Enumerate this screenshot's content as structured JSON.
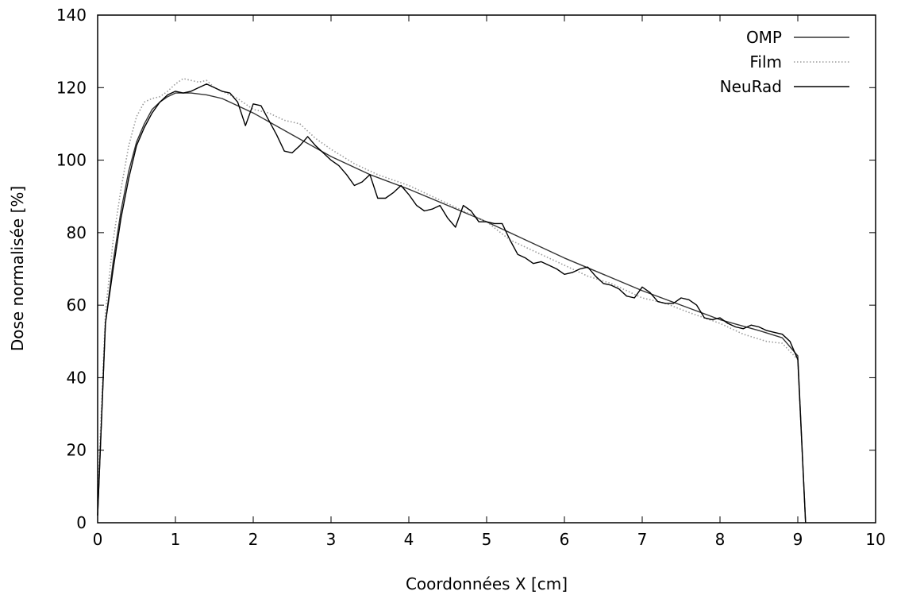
{
  "chart_data": {
    "type": "line",
    "xlabel": "Coordonnées X [cm]",
    "ylabel": "Dose normalisée [%]",
    "xlim": [
      0,
      10
    ],
    "ylim": [
      0,
      140
    ],
    "xticks": [
      0,
      1,
      2,
      3,
      4,
      5,
      6,
      7,
      8,
      9,
      10
    ],
    "yticks": [
      0,
      20,
      40,
      60,
      80,
      100,
      120,
      140
    ],
    "xtick_labels": [
      "0",
      "1",
      "2",
      "3",
      "4",
      "5",
      "6",
      "7",
      "8",
      "9",
      "10"
    ],
    "ytick_labels": [
      "0",
      "20",
      "40",
      "60",
      "80",
      "100",
      "120",
      "140"
    ],
    "grid": false,
    "legend_position": "top-right",
    "series": [
      {
        "name": "OMP",
        "style": "solid",
        "color": "#333333",
        "x": [
          0,
          0.1,
          0.2,
          0.3,
          0.4,
          0.5,
          0.6,
          0.7,
          0.8,
          0.9,
          1.0,
          1.2,
          1.4,
          1.6,
          1.8,
          2.0,
          2.5,
          3.0,
          3.5,
          4.0,
          4.5,
          5.0,
          5.5,
          6.0,
          6.5,
          7.0,
          7.5,
          8.0,
          8.5,
          8.8,
          9.0,
          9.1
        ],
        "y": [
          2,
          55,
          72,
          86,
          97,
          105,
          110,
          114,
          116,
          117.5,
          118.5,
          118.5,
          118,
          117,
          115,
          113,
          107,
          101,
          96,
          92,
          87.5,
          83,
          78,
          73,
          68.5,
          64,
          60,
          56,
          53,
          51,
          46,
          0
        ]
      },
      {
        "name": "Film",
        "style": "dotted",
        "color": "#9a9a9a",
        "x": [
          0,
          0.1,
          0.2,
          0.3,
          0.4,
          0.5,
          0.6,
          0.7,
          0.8,
          0.9,
          1.0,
          1.1,
          1.2,
          1.3,
          1.4,
          1.5,
          1.6,
          1.8,
          2.0,
          2.2,
          2.4,
          2.6,
          2.8,
          3.0,
          3.3,
          3.6,
          4.0,
          4.3,
          4.6,
          5.0,
          5.3,
          5.6,
          6.0,
          6.3,
          6.6,
          7.0,
          7.3,
          7.6,
          8.0,
          8.3,
          8.6,
          8.8,
          9.0,
          9.1
        ],
        "y": [
          6,
          58,
          78,
          92,
          104,
          112,
          116,
          117,
          117.5,
          119,
          121,
          122.5,
          122,
          121.5,
          122,
          120,
          119,
          117,
          114,
          113,
          111,
          110,
          106,
          103,
          99,
          96,
          93,
          90,
          87,
          83,
          78,
          75,
          71,
          68,
          66,
          62,
          60.5,
          58,
          55,
          52,
          50,
          49.5,
          45,
          0
        ]
      },
      {
        "name": "NeuRad",
        "style": "solid",
        "color": "#000000",
        "x": [
          0,
          0.1,
          0.2,
          0.3,
          0.4,
          0.5,
          0.6,
          0.7,
          0.8,
          0.9,
          1.0,
          1.1,
          1.2,
          1.3,
          1.4,
          1.5,
          1.6,
          1.7,
          1.8,
          1.9,
          2.0,
          2.1,
          2.2,
          2.3,
          2.4,
          2.5,
          2.6,
          2.7,
          2.8,
          2.9,
          3.0,
          3.1,
          3.2,
          3.3,
          3.4,
          3.5,
          3.6,
          3.7,
          3.8,
          3.9,
          4.0,
          4.1,
          4.2,
          4.3,
          4.4,
          4.5,
          4.6,
          4.7,
          4.8,
          4.9,
          5.0,
          5.1,
          5.2,
          5.3,
          5.4,
          5.5,
          5.6,
          5.7,
          5.8,
          5.9,
          6.0,
          6.1,
          6.2,
          6.3,
          6.4,
          6.5,
          6.6,
          6.7,
          6.8,
          6.9,
          7.0,
          7.1,
          7.2,
          7.3,
          7.4,
          7.5,
          7.6,
          7.7,
          7.8,
          7.9,
          8.0,
          8.1,
          8.2,
          8.3,
          8.4,
          8.5,
          8.6,
          8.7,
          8.8,
          8.9,
          9.0,
          9.1
        ],
        "y": [
          2,
          55,
          70,
          84,
          95,
          104,
          109,
          113,
          116,
          118,
          119,
          118.5,
          119,
          120,
          121,
          120,
          119,
          118.5,
          116,
          109.5,
          115.5,
          115,
          111,
          107,
          102.5,
          102,
          104,
          106.5,
          104,
          102,
          100,
          98.5,
          96,
          93,
          94,
          96,
          89.5,
          89.5,
          91,
          93,
          90.5,
          87.5,
          86,
          86.5,
          87.5,
          84,
          81.5,
          87.5,
          86,
          83,
          83,
          82.5,
          82.5,
          78,
          74,
          73,
          71.5,
          72,
          71,
          70,
          68.5,
          69,
          70,
          70.5,
          68,
          66,
          65.5,
          64.5,
          62.5,
          62,
          65,
          63.5,
          61,
          60.5,
          60.5,
          62,
          61.5,
          60,
          56.5,
          56,
          56.5,
          55,
          54,
          53.5,
          54.5,
          54,
          53,
          52.5,
          52,
          50,
          45,
          0
        ]
      }
    ]
  }
}
